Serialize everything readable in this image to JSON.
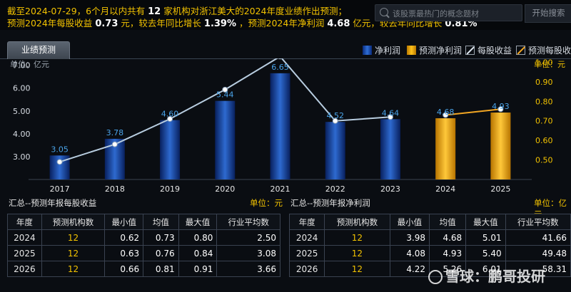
{
  "header": {
    "line1_pre": "截至2024-07-29，6个月以内共有",
    "line1_num": "12",
    "line1_post": "家机构对浙江美大的2024年度业绩作出预测；",
    "line2_a": "预测2024年每股收益",
    "line2_b": "0.73",
    "line2_c": "元，较去年同比增长",
    "line2_d": "1.39%",
    "line2_e": "，预测2024年净利润",
    "line2_f": "4.68",
    "line2_g": "亿元，较去年同比增长",
    "line2_h": "0.81%"
  },
  "search": {
    "placeholder": "该股票最热门的概念题材",
    "button": "开始搜索",
    "icon": "search-icon"
  },
  "tab": {
    "label": "业绩预测"
  },
  "legend": [
    {
      "label": "净利润",
      "color": "#2f6fd6"
    },
    {
      "label": "预测净利润",
      "color": "#ffc21a"
    },
    {
      "label": "每股收益",
      "color": "#dfe8f2"
    },
    {
      "label": "预测每股收益",
      "color": "#f2a623"
    }
  ],
  "chart_data": {
    "type": "bar",
    "left_unit_label": "单位：亿元",
    "right_unit_label": "单位：元",
    "categories": [
      "2017",
      "2018",
      "2019",
      "2020",
      "2021",
      "2022",
      "2023",
      "2024",
      "2025"
    ],
    "bar_values": [
      3.05,
      3.78,
      4.6,
      5.44,
      6.65,
      4.52,
      4.64,
      4.68,
      4.93
    ],
    "bar_labels": [
      "3.05",
      "3.78",
      "4.60",
      "5.44",
      "6.65",
      "4.52",
      "4.64",
      "4.68",
      "4.93"
    ],
    "bar_forecast": [
      false,
      false,
      false,
      false,
      false,
      false,
      false,
      true,
      true
    ],
    "eps_values": [
      0.49,
      0.58,
      0.71,
      0.86,
      1.03,
      0.7,
      0.72,
      0.73,
      0.76
    ],
    "left_ticks": [
      "3.00",
      "4.00",
      "5.00",
      "6.00",
      "7.00"
    ],
    "left_range": [
      2.0,
      7.3
    ],
    "right_ticks": [
      "0.50",
      "0.60",
      "0.70",
      "0.80",
      "0.90",
      "1.00"
    ],
    "right_range": [
      0.4,
      1.02
    ]
  },
  "eps_table": {
    "title": "汇总--预测年报每股收益",
    "unit": "单位：元",
    "headers": [
      "年度",
      "预测机构数",
      "最小值",
      "均值",
      "最大值",
      "行业平均数"
    ],
    "rows": [
      [
        "2024",
        "12",
        "0.62",
        "0.73",
        "0.80",
        "2.50"
      ],
      [
        "2025",
        "12",
        "0.63",
        "0.76",
        "0.84",
        "3.08"
      ],
      [
        "2026",
        "12",
        "0.66",
        "0.81",
        "0.91",
        "3.66"
      ]
    ]
  },
  "profit_table": {
    "title": "汇总--预测年报净利润",
    "unit": "单位：亿元",
    "headers": [
      "年度",
      "预测机构数",
      "最小值",
      "均值",
      "最大值",
      "行业平均数"
    ],
    "rows": [
      [
        "2024",
        "12",
        "3.98",
        "4.68",
        "5.01",
        "41.66"
      ],
      [
        "2025",
        "12",
        "4.08",
        "4.93",
        "5.40",
        "49.48"
      ],
      [
        "2026",
        "12",
        "4.22",
        "5.26",
        "6.01",
        "58.31"
      ]
    ]
  },
  "watermark": "雪球：鹏哥投研"
}
